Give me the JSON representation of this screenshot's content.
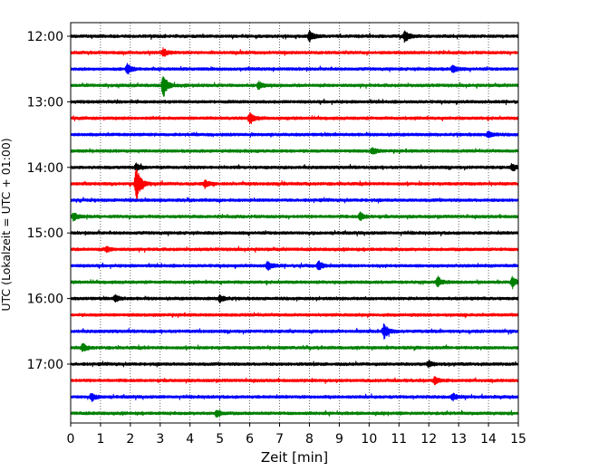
{
  "chart_data": {
    "type": "line",
    "subtype": "helicorder",
    "title": "",
    "xlabel": "Zeit  [min]",
    "ylabel": "UTC (Lokalzeit = UTC + 01:00)",
    "xlim": [
      0,
      15
    ],
    "x_ticks": [
      "0",
      "1",
      "2",
      "3",
      "4",
      "5",
      "6",
      "7",
      "8",
      "9",
      "10",
      "11",
      "12",
      "13",
      "14",
      "15"
    ],
    "x_grid": "dotted vertical lines at each minute",
    "y_tick_labels": [
      "12:00",
      "13:00",
      "14:00",
      "15:00",
      "16:00",
      "17:00"
    ],
    "trace_interval_min": 15,
    "color_cycle": [
      "#000000",
      "#ff0000",
      "#0000ff",
      "#008000"
    ],
    "traces": [
      {
        "start": "12:00",
        "color": "#000000",
        "events": [
          {
            "minute": 8.0,
            "amp": 0.9
          },
          {
            "minute": 11.2,
            "amp": 1.0
          }
        ]
      },
      {
        "start": "12:15",
        "color": "#ff0000",
        "events": [
          {
            "minute": 3.1,
            "amp": 0.6
          }
        ]
      },
      {
        "start": "12:30",
        "color": "#0000ff",
        "events": [
          {
            "minute": 1.9,
            "amp": 0.8
          },
          {
            "minute": 12.8,
            "amp": 0.6
          }
        ]
      },
      {
        "start": "12:45",
        "color": "#008000",
        "events": [
          {
            "minute": 3.1,
            "amp": 2.0
          },
          {
            "minute": 6.3,
            "amp": 0.6
          }
        ]
      },
      {
        "start": "13:00",
        "color": "#000000",
        "events": []
      },
      {
        "start": "13:15",
        "color": "#ff0000",
        "events": [
          {
            "minute": 6.0,
            "amp": 0.9
          }
        ]
      },
      {
        "start": "13:30",
        "color": "#0000ff",
        "events": [
          {
            "minute": 14.0,
            "amp": 0.5
          }
        ]
      },
      {
        "start": "13:45",
        "color": "#008000",
        "events": [
          {
            "minute": 10.1,
            "amp": 0.5
          }
        ]
      },
      {
        "start": "14:00",
        "color": "#000000",
        "events": [
          {
            "minute": 2.2,
            "amp": 0.6
          },
          {
            "minute": 14.8,
            "amp": 0.5
          }
        ]
      },
      {
        "start": "14:15",
        "color": "#ff0000",
        "events": [
          {
            "minute": 2.2,
            "amp": 3.0
          },
          {
            "minute": 4.5,
            "amp": 0.5
          }
        ]
      },
      {
        "start": "14:30",
        "color": "#0000ff",
        "events": []
      },
      {
        "start": "14:45",
        "color": "#008000",
        "events": [
          {
            "minute": 0.1,
            "amp": 0.6
          },
          {
            "minute": 9.7,
            "amp": 0.6
          }
        ]
      },
      {
        "start": "15:00",
        "color": "#000000",
        "events": []
      },
      {
        "start": "15:15",
        "color": "#ff0000",
        "events": [
          {
            "minute": 1.2,
            "amp": 0.4
          }
        ]
      },
      {
        "start": "15:30",
        "color": "#0000ff",
        "events": [
          {
            "minute": 6.6,
            "amp": 0.7
          },
          {
            "minute": 8.3,
            "amp": 0.7
          }
        ]
      },
      {
        "start": "15:45",
        "color": "#008000",
        "events": [
          {
            "minute": 12.3,
            "amp": 0.8
          },
          {
            "minute": 14.8,
            "amp": 0.9
          }
        ]
      },
      {
        "start": "16:00",
        "color": "#000000",
        "events": [
          {
            "minute": 5.0,
            "amp": 0.6
          },
          {
            "minute": 1.5,
            "amp": 0.5
          }
        ]
      },
      {
        "start": "16:15",
        "color": "#ff0000",
        "events": []
      },
      {
        "start": "16:30",
        "color": "#0000ff",
        "events": [
          {
            "minute": 10.5,
            "amp": 1.2
          }
        ]
      },
      {
        "start": "16:45",
        "color": "#008000",
        "events": [
          {
            "minute": 0.4,
            "amp": 0.6
          }
        ]
      },
      {
        "start": "17:00",
        "color": "#000000",
        "events": [
          {
            "minute": 12.0,
            "amp": 0.5
          }
        ]
      },
      {
        "start": "17:15",
        "color": "#ff0000",
        "events": [
          {
            "minute": 12.2,
            "amp": 0.5
          }
        ]
      },
      {
        "start": "17:30",
        "color": "#0000ff",
        "events": [
          {
            "minute": 0.7,
            "amp": 0.6
          },
          {
            "minute": 12.8,
            "amp": 0.5
          }
        ]
      },
      {
        "start": "17:45",
        "color": "#008000",
        "events": [
          {
            "minute": 4.9,
            "amp": 0.6
          }
        ]
      }
    ]
  }
}
